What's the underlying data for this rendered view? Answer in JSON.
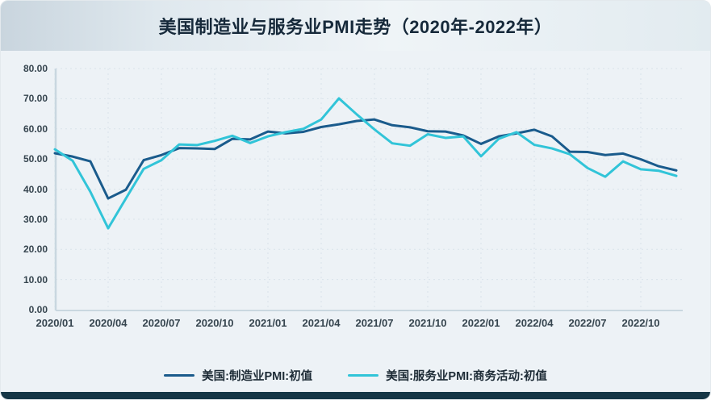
{
  "header": {
    "title": "美国制造业与服务业PMI走势（2020年-2022年）"
  },
  "chart_data": {
    "type": "line",
    "title": "美国制造业与服务业PMI走势（2020年-2022年）",
    "x": [
      "2020/01",
      "2020/02",
      "2020/03",
      "2020/04",
      "2020/05",
      "2020/06",
      "2020/07",
      "2020/08",
      "2020/09",
      "2020/10",
      "2020/11",
      "2020/12",
      "2021/01",
      "2021/02",
      "2021/03",
      "2021/04",
      "2021/05",
      "2021/06",
      "2021/07",
      "2021/08",
      "2021/09",
      "2021/10",
      "2021/11",
      "2021/12",
      "2022/01",
      "2022/02",
      "2022/03",
      "2022/04",
      "2022/05",
      "2022/06",
      "2022/07",
      "2022/08",
      "2022/09",
      "2022/10",
      "2022/11",
      "2022/12"
    ],
    "series": [
      {
        "name": "美国:制造业PMI:初值",
        "color": "#1a5b8c",
        "values": [
          51.9,
          50.8,
          49.2,
          36.9,
          39.8,
          49.6,
          51.3,
          53.6,
          53.5,
          53.3,
          56.7,
          56.5,
          59.1,
          58.5,
          59.0,
          60.6,
          61.5,
          62.6,
          63.1,
          61.2,
          60.5,
          59.2,
          59.1,
          57.8,
          55.0,
          57.5,
          58.5,
          59.7,
          57.5,
          52.4,
          52.3,
          51.3,
          51.8,
          49.9,
          47.6,
          46.2
        ]
      },
      {
        "name": "美国:服务业PMI:商务活动:初值",
        "color": "#31c4d8",
        "values": [
          53.2,
          49.4,
          39.1,
          27.0,
          36.9,
          46.7,
          49.6,
          54.8,
          54.6,
          56.0,
          57.7,
          55.3,
          57.5,
          58.9,
          60.0,
          63.1,
          70.1,
          64.8,
          59.8,
          55.2,
          54.4,
          58.2,
          57.0,
          57.5,
          50.9,
          56.7,
          58.9,
          54.7,
          53.5,
          51.6,
          47.0,
          44.1,
          49.2,
          46.6,
          46.1,
          44.4
        ]
      }
    ],
    "xticks": [
      "2020/01",
      "2020/04",
      "2020/07",
      "2020/10",
      "2021/01",
      "2021/04",
      "2021/07",
      "2021/10",
      "2022/01",
      "2022/04",
      "2022/07",
      "2022/10"
    ],
    "yticks": [
      "80.00",
      "70.00",
      "60.00",
      "50.00",
      "40.00",
      "30.00",
      "20.00",
      "10.00",
      "0.00"
    ],
    "ylim": [
      0,
      80
    ],
    "xlabel": "",
    "ylabel": "",
    "grid": "dashed horizontal and vertical",
    "legend_position": "bottom"
  },
  "theme": {
    "card_background": "#edf2f6",
    "header_gradient_left": "#c9d5de",
    "header_gradient_right": "#eff4f7",
    "title_color": "#16293a",
    "axis_color": "#c9d7e0",
    "gridline_color": "#d9e3ea",
    "tick_label_color": "#36454f",
    "bottom_bar_color": "#153646"
  }
}
